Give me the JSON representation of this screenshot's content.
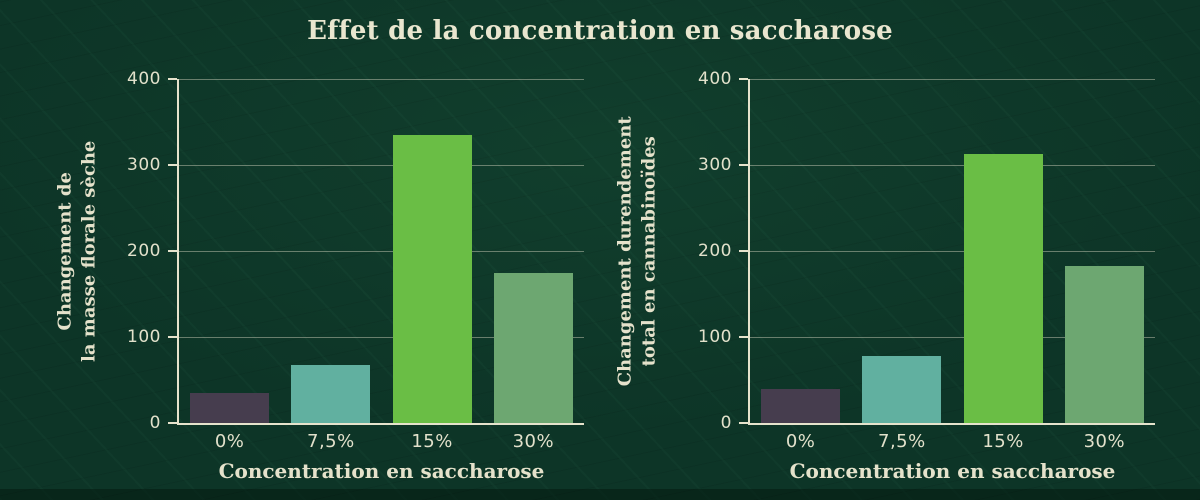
{
  "title": "Effet de la concentration en saccharose",
  "colors": {
    "background": "#0d3527",
    "text": "#e9e6cf",
    "axis": "#e6e3cc",
    "gridline": "rgba(230,227,204,0.42)"
  },
  "chart_data": [
    {
      "type": "bar",
      "ylabel": "Changement de la masse florale sèche",
      "ylabel_lines": [
        "Changement de",
        "la masse florale sèche"
      ],
      "xlabel": "Concentration en saccharose",
      "categories": [
        "0%",
        "7,5%",
        "15%",
        "30%"
      ],
      "values": [
        35,
        67,
        335,
        175
      ],
      "ylim": [
        0,
        400
      ],
      "y_ticks": [
        "0",
        "100",
        "200",
        "300",
        "400"
      ],
      "grid": "horizontal",
      "legend": "none",
      "bar_colors": [
        "#463d4e",
        "#61b0a0",
        "#6abe45",
        "#6da771"
      ]
    },
    {
      "type": "bar",
      "ylabel": "Changement durendement total en cannabinoïdes",
      "ylabel_lines": [
        "Changement durendement",
        "total en cannabinoïdes"
      ],
      "xlabel": "Concentration en saccharose",
      "categories": [
        "0%",
        "7,5%",
        "15%",
        "30%"
      ],
      "values": [
        40,
        78,
        313,
        182
      ],
      "ylim": [
        0,
        400
      ],
      "y_ticks": [
        "0",
        "100",
        "200",
        "300",
        "400"
      ],
      "grid": "horizontal",
      "legend": "none",
      "bar_colors": [
        "#463d4e",
        "#61b0a0",
        "#6abe45",
        "#6da771"
      ]
    }
  ]
}
